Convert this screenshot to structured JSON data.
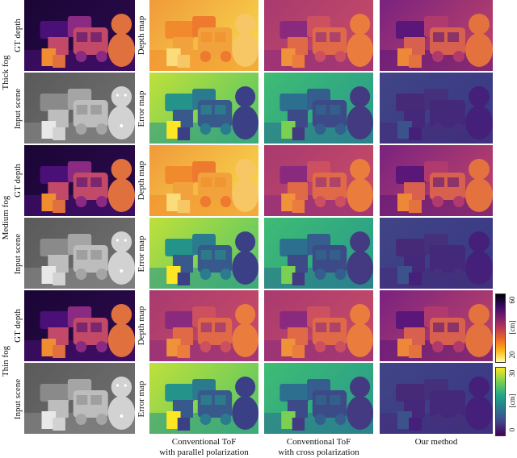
{
  "fog_levels": [
    {
      "label": "Thick fog"
    },
    {
      "label": "Medium fog"
    },
    {
      "label": "Thin fog"
    }
  ],
  "row_left_labels": {
    "gt": "GT depth",
    "input": "Input scene"
  },
  "row_mid_labels": {
    "depth": "Depth map",
    "error": "Error map"
  },
  "columns": [
    {
      "line1": "Conventional ToF",
      "line2": "with parallel polarization"
    },
    {
      "line1": "Conventional ToF",
      "line2": "with cross polarization"
    },
    {
      "line1": "Our method",
      "line2": ""
    }
  ],
  "colorbars": {
    "depth": {
      "top_tick": "60",
      "bottom_tick": "20",
      "unit": "[cm]",
      "colormap": "inferno-reversed",
      "range": [
        20,
        60
      ]
    },
    "error": {
      "top_tick": "30",
      "bottom_tick": "0",
      "unit": "[cm]",
      "colormap": "viridis",
      "range": [
        0,
        30
      ]
    }
  },
  "colors": {
    "bg": "#ffffff",
    "divider": "#ffffff"
  }
}
